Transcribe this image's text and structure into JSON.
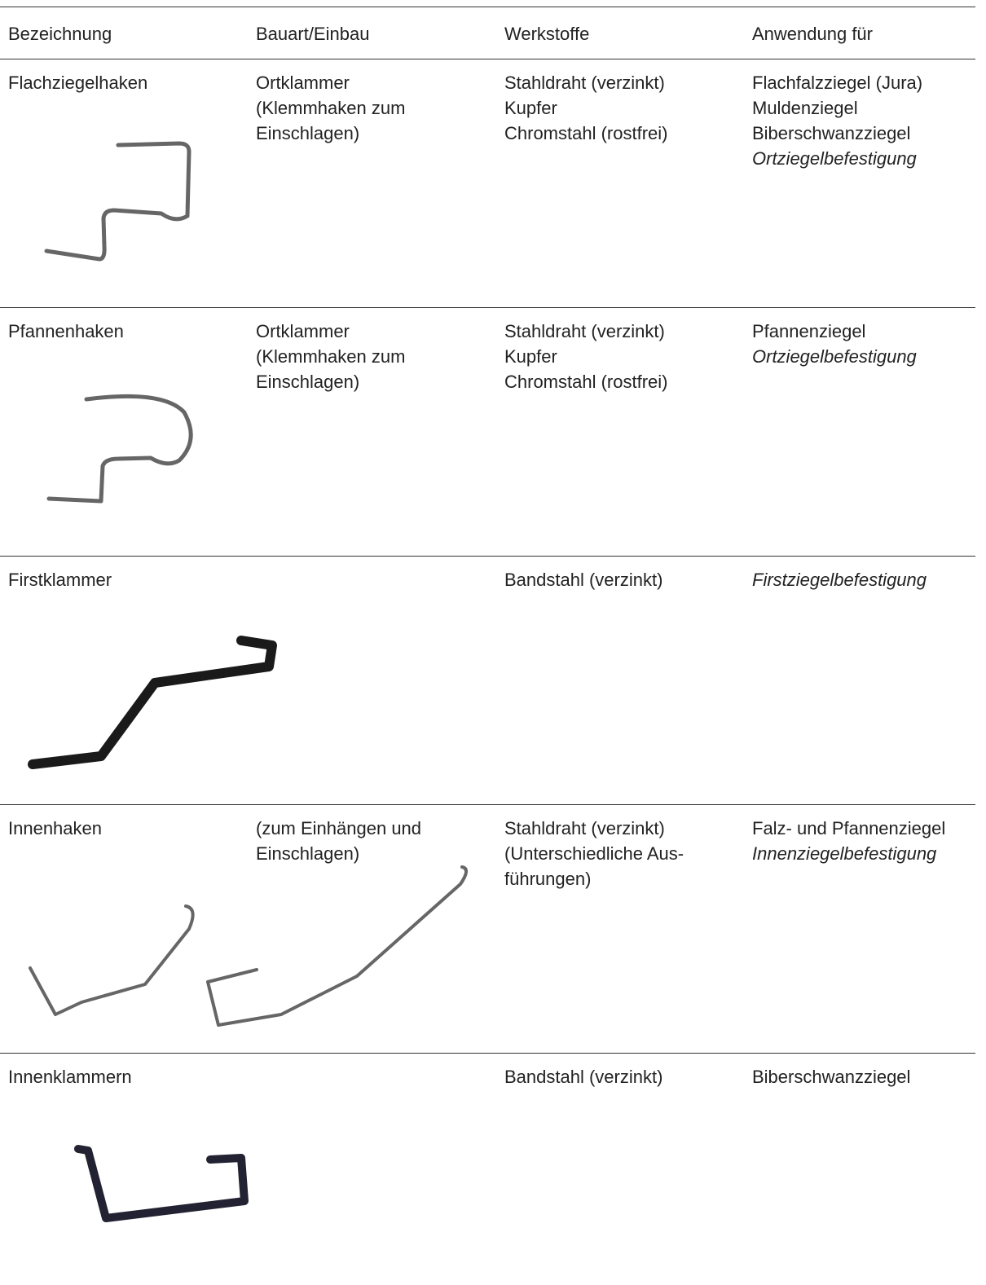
{
  "table": {
    "header": [
      "Bezeichnung",
      "Bauart/Einbau",
      "Werkstoffe",
      "Anwendung für"
    ],
    "rows": [
      {
        "cells": [
          [
            "Flachziegelhaken"
          ],
          [
            "Ortklammer",
            "(Klemmhaken zum",
            "Einschlagen)"
          ],
          [
            "Stahldraht (verzinkt)",
            "Kupfer",
            "Chromstahl (rostfrei)"
          ],
          [
            "Flachfalzziegel (Jura)",
            "Muldenziegel",
            "Biberschwanzziegel",
            {
              "text": "Ortziegelbefestigung",
              "italic": true
            }
          ]
        ]
      },
      {
        "cells": [
          [
            "Pfannenhaken"
          ],
          [
            "Ortklammer",
            "(Klemmhaken zum",
            "Einschlagen)"
          ],
          [
            "Stahldraht (verzinkt)",
            "Kupfer",
            "Chromstahl (rostfrei)"
          ],
          [
            "Pfannenziegel",
            {
              "text": "Ortziegelbefestigung",
              "italic": true
            }
          ]
        ]
      },
      {
        "cells": [
          [
            "Firstklammer"
          ],
          [],
          [
            "Bandstahl (verzinkt)"
          ],
          [
            {
              "text": "Firstziegelbefestigung",
              "italic": true
            }
          ]
        ]
      },
      {
        "cells": [
          [
            "Innenhaken"
          ],
          [
            "(zum Einhängen und",
            "Einschlagen)"
          ],
          [
            "Stahldraht (verzinkt)",
            "(Unterschiedliche Aus-",
            "führungen)"
          ],
          [
            "Falz- und Pfannenziegel",
            {
              "text": "Innenziegelbefestigung",
              "italic": true
            }
          ]
        ]
      },
      {
        "cells": [
          [
            "Innenklammern"
          ],
          [],
          [
            "Bandstahl (verzinkt)"
          ],
          [
            "Biberschwanzziegel"
          ]
        ]
      }
    ]
  }
}
